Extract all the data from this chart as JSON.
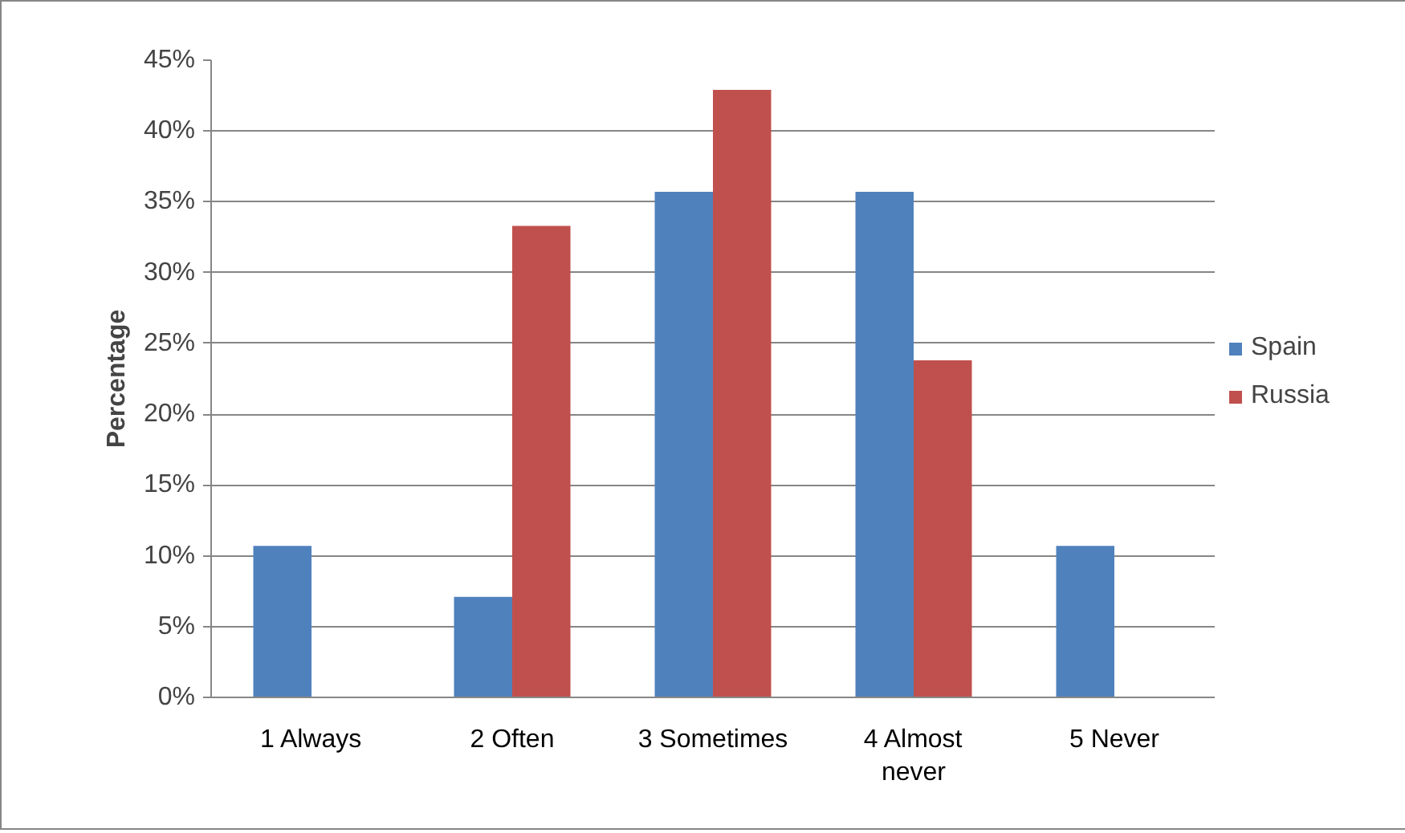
{
  "chart_data": {
    "type": "bar",
    "ylabel": "Percentage",
    "categories": [
      "1 Always",
      "2 Often",
      "3 Sometimes",
      "4 Almost never",
      "5 Never"
    ],
    "series": [
      {
        "name": "Spain",
        "color": "#4f81bd",
        "values": [
          10.7,
          7.1,
          35.7,
          35.7,
          10.7
        ]
      },
      {
        "name": "Russia",
        "color": "#c0504d",
        "values": [
          0,
          33.3,
          42.9,
          23.8,
          0
        ]
      }
    ],
    "ylim": [
      0,
      45
    ],
    "yticks": [
      {
        "value": 0,
        "label": "0%"
      },
      {
        "value": 5,
        "label": "5%"
      },
      {
        "value": 10,
        "label": "10%"
      },
      {
        "value": 15,
        "label": "15%"
      },
      {
        "value": 20,
        "label": "20%"
      },
      {
        "value": 25,
        "label": "25%"
      },
      {
        "value": 30,
        "label": "30%"
      },
      {
        "value": 35,
        "label": "35%"
      },
      {
        "value": 40,
        "label": "40%"
      },
      {
        "value": 45,
        "label": "45%"
      }
    ],
    "grid": "y",
    "legend": "right"
  }
}
